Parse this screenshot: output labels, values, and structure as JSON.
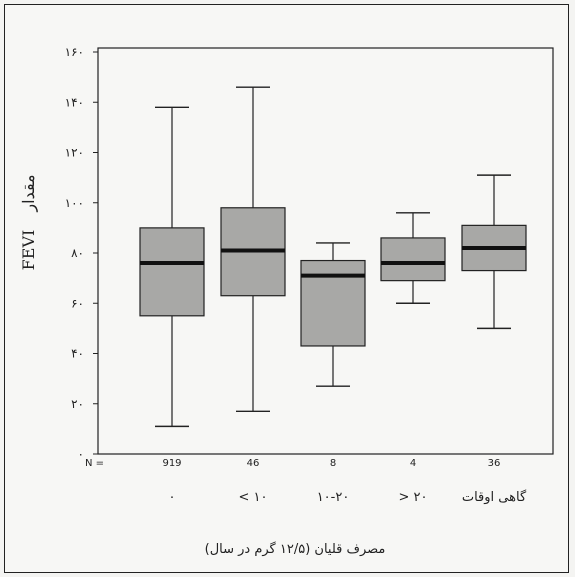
{
  "chart_data": {
    "type": "boxplot",
    "ylabel_latin": "FEVI",
    "ylabel_persian": "مقدار",
    "xlabel": "مصرف قلیان (۱۲/۵ گرم در سال)",
    "n_prefix": "N =",
    "ylim": [
      0,
      160
    ],
    "y_ticks": [
      0,
      20,
      40,
      60,
      80,
      100,
      120,
      140,
      160
    ],
    "y_tick_labels": [
      "۰",
      "۲۰",
      "۴۰",
      "۶۰",
      "۸۰",
      "۱۰۰",
      "۱۲۰",
      "۱۴۰",
      "۱۶۰"
    ],
    "categories": [
      "۰",
      "۱۰ >",
      "۱۰-۲۰",
      "۲۰ <",
      "گاهی اوقات"
    ],
    "n": [
      "919",
      "46",
      "8",
      "4",
      "36"
    ],
    "boxes": [
      {
        "min": 11,
        "q1": 55,
        "median": 76,
        "q3": 90,
        "max": 138
      },
      {
        "min": 17,
        "q1": 63,
        "median": 81,
        "q3": 98,
        "max": 146
      },
      {
        "min": 27,
        "q1": 43,
        "median": 71,
        "q3": 77,
        "max": 84
      },
      {
        "min": 60,
        "q1": 69,
        "median": 76,
        "q3": 86,
        "max": 96
      },
      {
        "min": 50,
        "q1": 73,
        "median": 82,
        "q3": 91,
        "max": 111
      }
    ],
    "box_fill": "#a8a8a6",
    "line_color": "#222222"
  }
}
